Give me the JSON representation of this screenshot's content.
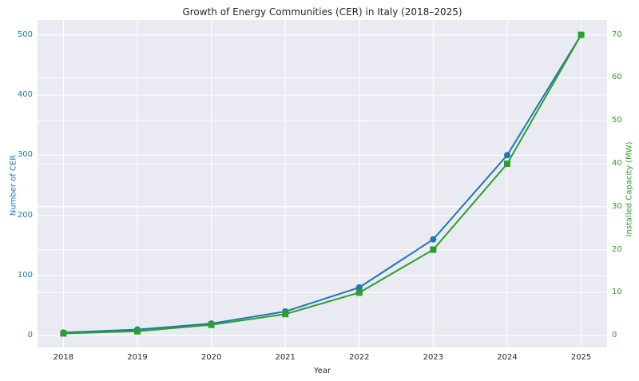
{
  "chart": {
    "title": "Growth of Energy Communities (CER) in Italy (2018–2025)",
    "xlabel": "Year",
    "ylabel_left": "Number of CER",
    "ylabel_right": "Installed Capacity (MW)"
  },
  "colors": {
    "cer_blue": "#1f77b4",
    "capacity_green": "#2ca02c",
    "plot_background": "#eaeaf2",
    "gridline": "#ffffff",
    "text_dark": "#262626",
    "figure_background": "#ffffff"
  },
  "chart_data": {
    "type": "line",
    "title": "Growth of Energy Communities (CER) in Italy (2018–2025)",
    "xlabel": "Year",
    "x": [
      2018,
      2019,
      2020,
      2021,
      2022,
      2023,
      2024,
      2025
    ],
    "series": [
      {
        "name": "Number of CER",
        "axis": "left",
        "color": "#1f77b4",
        "marker": "circle",
        "values": [
          5,
          10,
          20,
          40,
          80,
          160,
          300,
          500
        ]
      },
      {
        "name": "Installed Capacity (MW)",
        "axis": "right",
        "color": "#2ca02c",
        "marker": "square",
        "values": [
          0.5,
          1,
          2.5,
          5,
          10,
          20,
          40,
          70
        ]
      }
    ],
    "x_axis": {
      "ticks": [
        2018,
        2019,
        2020,
        2021,
        2022,
        2023,
        2024,
        2025
      ],
      "lim": [
        2017.65,
        2025.35
      ]
    },
    "left_axis": {
      "label": "Number of CER",
      "ticks": [
        0,
        100,
        200,
        300,
        400,
        500
      ],
      "lim": [
        -19.75,
        524.75
      ],
      "color": "#1f77b4"
    },
    "right_axis": {
      "label": "Installed Capacity (MW)",
      "ticks": [
        0,
        10,
        20,
        30,
        40,
        50,
        60,
        70
      ],
      "lim": [
        -2.765,
        73.465
      ],
      "color": "#2ca02c"
    },
    "grid": true,
    "legend": false
  }
}
